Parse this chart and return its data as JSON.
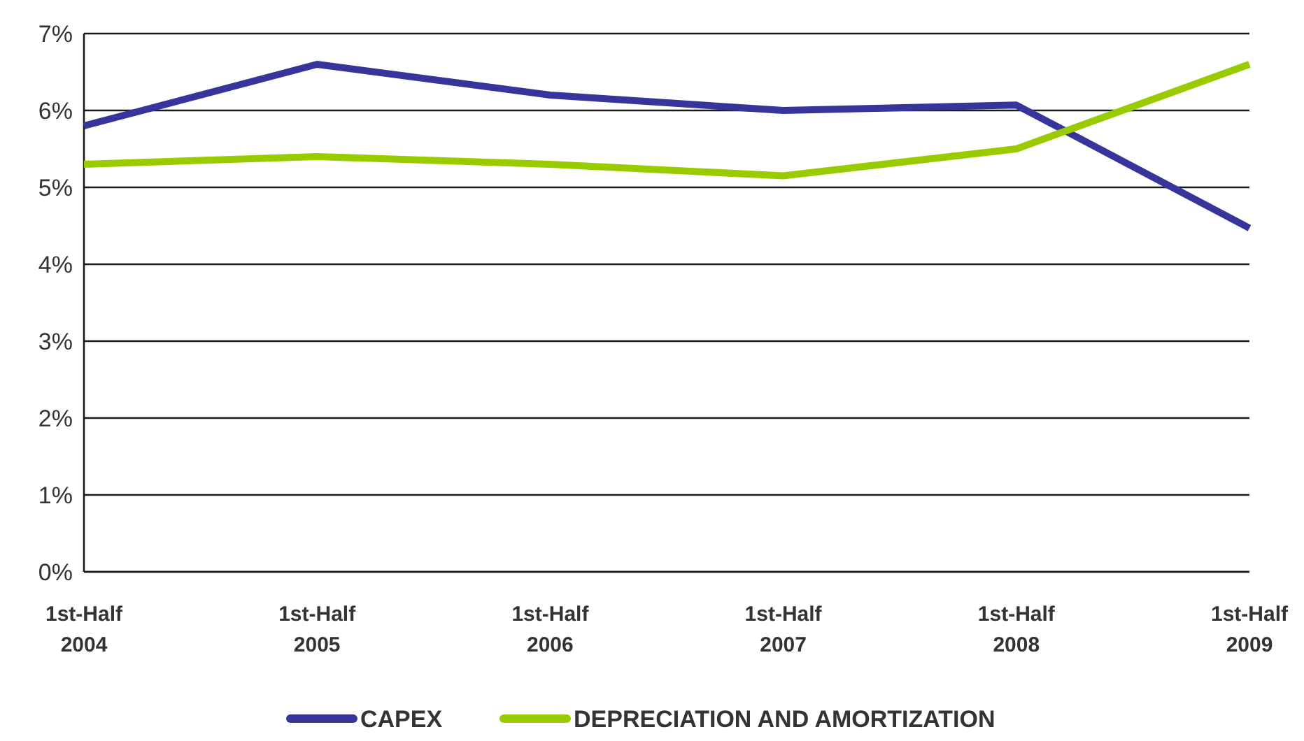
{
  "chart_data": {
    "type": "line",
    "categories": [
      "1st-Half 2004",
      "1st-Half 2005",
      "1st-Half 2006",
      "1st-Half 2007",
      "1st-Half 2008",
      "1st-Half 2009"
    ],
    "series": [
      {
        "name": "CAPEX",
        "color": "#36359c",
        "values": [
          5.8,
          6.6,
          6.2,
          6.0,
          6.07,
          4.47
        ]
      },
      {
        "name": "DEPRECIATION AND AMORTIZATION",
        "color": "#99cc00",
        "values": [
          5.3,
          5.4,
          5.3,
          5.15,
          5.5,
          6.6
        ]
      }
    ],
    "ylim": [
      0,
      7
    ],
    "yticks": [
      {
        "value": 0,
        "label": "0%"
      },
      {
        "value": 1,
        "label": "1%"
      },
      {
        "value": 2,
        "label": "2%"
      },
      {
        "value": 3,
        "label": "3%"
      },
      {
        "value": 4,
        "label": "4%"
      },
      {
        "value": 5,
        "label": "5%"
      },
      {
        "value": 6,
        "label": "6%"
      },
      {
        "value": 7,
        "label": "7%"
      }
    ],
    "grid": "y",
    "legend": "bottom",
    "marker": "none",
    "line_style": "solid"
  }
}
